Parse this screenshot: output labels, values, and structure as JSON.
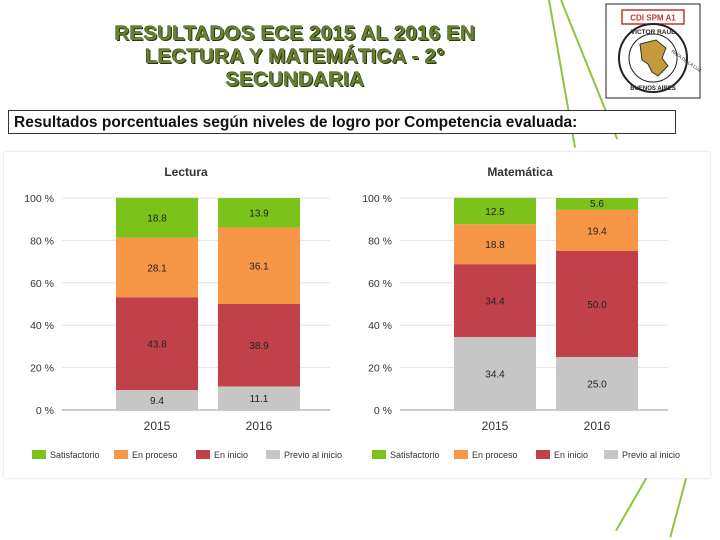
{
  "slide": {
    "title_lines": [
      "RESULTADOS ECE 2015 AL 2016 EN",
      "LECTURA Y MATEMÁTICA - 2°",
      "SECUNDARIA"
    ],
    "subtitle": "Resultados porcentuales según niveles de logro por Competencia evaluada:",
    "logo": {
      "top_text": "CDI SPM A1",
      "ring_text": "VICTOR RAUL",
      "motto": "RAYA DE LA LUZ",
      "bottom_text": "BUENOS AIRES"
    }
  },
  "colors": {
    "Satisfactorio": "#7cc21a",
    "En proceso": "#f79646",
    "En inicio": "#c0414a",
    "Previo al inicio": "#c6c6c6",
    "accent": "#8cc63f"
  },
  "chart_data": [
    {
      "type": "bar",
      "stacked": true,
      "title": "Lectura",
      "categories": [
        "2015",
        "2016"
      ],
      "series": [
        {
          "name": "Previo al inicio",
          "values": [
            9.4,
            11.1
          ]
        },
        {
          "name": "En inicio",
          "values": [
            43.8,
            38.9
          ]
        },
        {
          "name": "En proceso",
          "values": [
            28.1,
            36.1
          ]
        },
        {
          "name": "Satisfactorio",
          "values": [
            18.8,
            13.9
          ]
        }
      ],
      "yticks": [
        "0 %",
        "20 %",
        "40 %",
        "60 %",
        "80 %",
        "100 %"
      ],
      "ylim": [
        0,
        100
      ],
      "legend": [
        "Satisfactorio",
        "En proceso",
        "En inicio",
        "Previo al inicio"
      ],
      "legend_position": "bottom"
    },
    {
      "type": "bar",
      "stacked": true,
      "title": "Matemática",
      "categories": [
        "2015",
        "2016"
      ],
      "series": [
        {
          "name": "Previo al inicio",
          "values": [
            34.4,
            25.0
          ]
        },
        {
          "name": "En inicio",
          "values": [
            34.4,
            50.0
          ]
        },
        {
          "name": "En proceso",
          "values": [
            18.8,
            19.4
          ]
        },
        {
          "name": "Satisfactorio",
          "values": [
            12.5,
            5.6
          ]
        }
      ],
      "yticks": [
        "0 %",
        "20 %",
        "40 %",
        "60 %",
        "80 %",
        "100 %"
      ],
      "ylim": [
        0,
        100
      ],
      "legend": [
        "Satisfactorio",
        "En proceso",
        "En inicio",
        "Previo al inicio"
      ],
      "legend_position": "bottom"
    }
  ]
}
